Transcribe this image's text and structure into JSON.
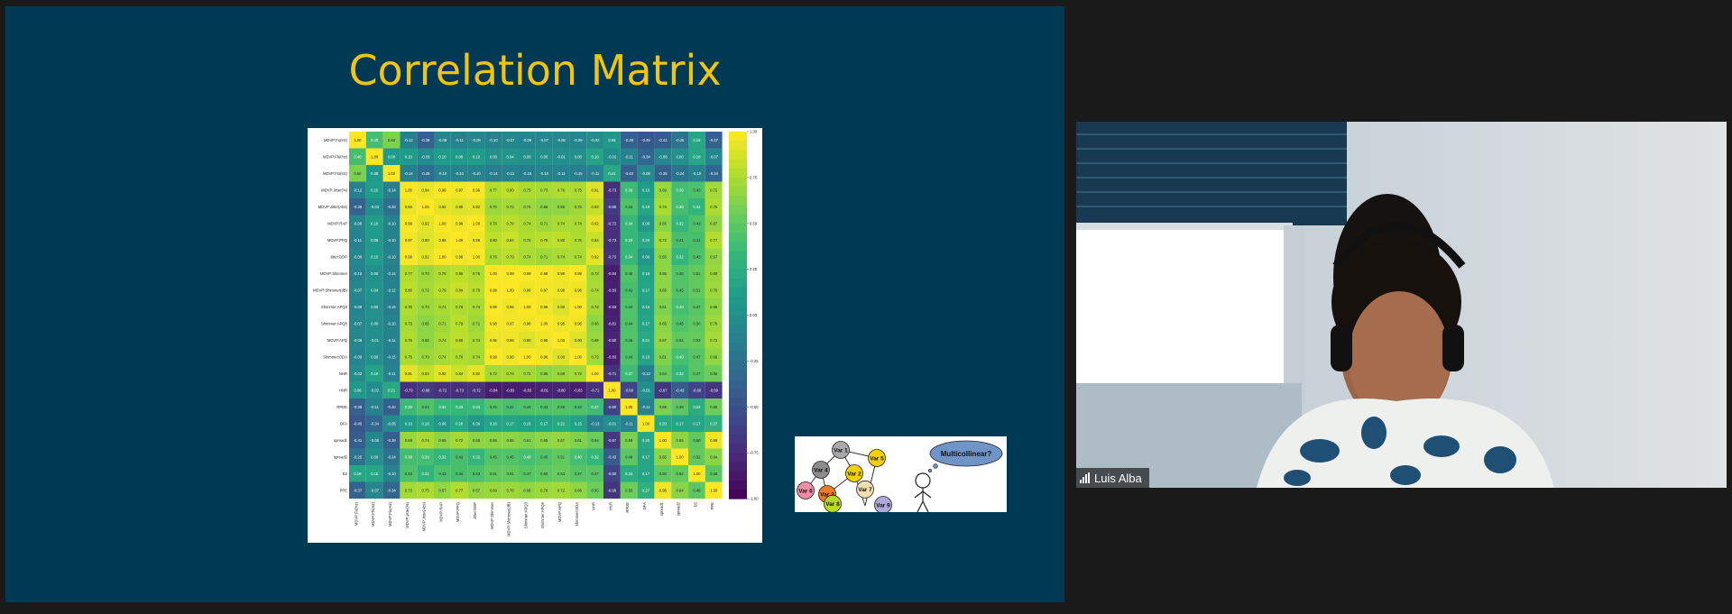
{
  "slide": {
    "title": "Correlation Matrix"
  },
  "heatmap": {
    "labels": [
      "MDVP:Fo(Hz)",
      "MDVP:Fhi(Hz)",
      "MDVP:Flo(Hz)",
      "MDVP:Jitter(%)",
      "MDVP:Jitter(Abs)",
      "MDVP:RAP",
      "MDVP:PPQ",
      "Jitter:DDP",
      "MDVP:Shimmer",
      "MDVP:Shimmer(dB)",
      "Shimmer:APQ3",
      "Shimmer:APQ5",
      "MDVP:APQ",
      "Shimmer:DDA",
      "NHR",
      "HNR",
      "RPDE",
      "DFA",
      "spread1",
      "spread2",
      "D2",
      "PPE"
    ],
    "values": [
      [
        1.0,
        0.4,
        0.6,
        -0.12,
        -0.38,
        -0.08,
        -0.11,
        -0.08,
        -0.1,
        -0.07,
        -0.09,
        -0.07,
        -0.08,
        -0.09,
        -0.02,
        0.06,
        -0.38,
        -0.45,
        -0.41,
        -0.25,
        0.18,
        -0.37
      ],
      [
        0.4,
        1.0,
        0.08,
        0.1,
        -0.03,
        0.1,
        0.09,
        0.1,
        0.0,
        0.04,
        -0.0,
        -0.0,
        -0.01,
        -0.0,
        0.16,
        -0.02,
        -0.11,
        -0.34,
        -0.08,
        -0.0,
        0.18,
        -0.07
      ],
      [
        0.6,
        0.08,
        1.0,
        -0.14,
        -0.28,
        -0.1,
        -0.1,
        -0.1,
        -0.14,
        -0.12,
        -0.15,
        -0.1,
        -0.11,
        -0.15,
        -0.11,
        0.21,
        -0.4,
        -0.05,
        -0.39,
        -0.24,
        -0.1,
        -0.34
      ],
      [
        -0.12,
        0.1,
        -0.14,
        1.0,
        0.94,
        0.99,
        0.97,
        0.99,
        0.77,
        0.8,
        0.75,
        0.73,
        0.76,
        0.75,
        0.91,
        -0.73,
        0.36,
        0.1,
        0.69,
        0.39,
        0.43,
        0.72
      ],
      [
        -0.38,
        -0.03,
        -0.28,
        0.94,
        1.0,
        0.92,
        0.9,
        0.92,
        0.7,
        0.72,
        0.7,
        0.65,
        0.65,
        0.7,
        0.83,
        -0.66,
        0.44,
        0.18,
        0.74,
        0.39,
        0.31,
        0.75
      ],
      [
        -0.08,
        0.1,
        -0.1,
        0.99,
        0.92,
        1.0,
        0.96,
        1.0,
        0.76,
        0.79,
        0.74,
        0.71,
        0.74,
        0.74,
        0.92,
        -0.72,
        0.34,
        0.06,
        0.65,
        0.32,
        0.43,
        0.67
      ],
      [
        -0.11,
        0.09,
        -0.1,
        0.97,
        0.9,
        0.96,
        1.0,
        0.96,
        0.8,
        0.84,
        0.76,
        0.79,
        0.8,
        0.76,
        0.84,
        -0.73,
        0.33,
        0.2,
        0.72,
        0.41,
        0.41,
        0.77
      ],
      [
        -0.08,
        0.1,
        -0.1,
        0.99,
        0.92,
        1.0,
        0.96,
        1.0,
        0.76,
        0.79,
        0.74,
        0.71,
        0.74,
        0.74,
        0.92,
        -0.72,
        0.34,
        0.06,
        0.65,
        0.32,
        0.43,
        0.67
      ],
      [
        -0.1,
        0.0,
        -0.14,
        0.77,
        0.7,
        0.76,
        0.8,
        0.76,
        1.0,
        0.99,
        0.99,
        0.98,
        0.95,
        0.99,
        0.72,
        -0.84,
        0.45,
        0.16,
        0.65,
        0.45,
        0.51,
        0.69
      ],
      [
        -0.07,
        0.04,
        -0.12,
        0.8,
        0.72,
        0.79,
        0.84,
        0.79,
        0.99,
        1.0,
        0.96,
        0.97,
        0.96,
        0.96,
        0.74,
        -0.83,
        0.41,
        0.17,
        0.65,
        0.45,
        0.51,
        0.7
      ],
      [
        -0.09,
        -0.0,
        -0.15,
        0.75,
        0.7,
        0.74,
        0.76,
        0.74,
        0.99,
        0.96,
        1.0,
        0.96,
        0.9,
        1.0,
        0.72,
        -0.83,
        0.44,
        0.15,
        0.61,
        0.4,
        0.47,
        0.66
      ],
      [
        -0.07,
        -0.0,
        -0.1,
        0.73,
        0.65,
        0.71,
        0.79,
        0.71,
        0.98,
        0.97,
        0.96,
        1.0,
        0.95,
        0.96,
        0.66,
        -0.81,
        0.44,
        0.17,
        0.65,
        0.45,
        0.5,
        0.7
      ],
      [
        -0.08,
        -0.01,
        -0.11,
        0.76,
        0.65,
        0.74,
        0.8,
        0.74,
        0.95,
        0.96,
        0.9,
        0.95,
        1.0,
        0.9,
        0.69,
        -0.8,
        0.45,
        0.21,
        0.67,
        0.51,
        0.53,
        0.72
      ],
      [
        -0.09,
        -0.0,
        -0.15,
        0.75,
        0.7,
        0.74,
        0.76,
        0.74,
        0.99,
        0.96,
        1.0,
        0.96,
        0.9,
        1.0,
        0.72,
        -0.83,
        0.44,
        0.15,
        0.61,
        0.4,
        0.47,
        0.66
      ],
      [
        -0.02,
        0.16,
        -0.11,
        0.91,
        0.83,
        0.92,
        0.84,
        0.92,
        0.72,
        0.74,
        0.72,
        0.66,
        0.69,
        0.72,
        1.0,
        -0.71,
        0.37,
        -0.13,
        0.54,
        0.32,
        0.47,
        0.55
      ],
      [
        0.06,
        -0.02,
        0.21,
        -0.73,
        -0.66,
        -0.72,
        -0.73,
        -0.72,
        -0.84,
        -0.83,
        -0.83,
        -0.81,
        -0.8,
        -0.83,
        -0.71,
        1.0,
        -0.6,
        -0.01,
        -0.67,
        -0.43,
        -0.6,
        -0.69
      ],
      [
        -0.38,
        -0.11,
        -0.4,
        0.36,
        0.44,
        0.34,
        0.33,
        0.34,
        0.45,
        0.41,
        0.44,
        0.44,
        0.45,
        0.44,
        0.37,
        -0.6,
        1.0,
        -0.11,
        0.59,
        0.48,
        0.24,
        0.55
      ],
      [
        -0.45,
        -0.34,
        -0.05,
        0.1,
        0.18,
        0.06,
        0.2,
        0.06,
        0.16,
        0.17,
        0.15,
        0.17,
        0.21,
        0.15,
        -0.13,
        -0.01,
        -0.11,
        1.0,
        0.2,
        0.17,
        0.17,
        0.27
      ],
      [
        -0.41,
        -0.08,
        -0.39,
        0.69,
        0.74,
        0.65,
        0.72,
        0.65,
        0.65,
        0.65,
        0.61,
        0.65,
        0.67,
        0.61,
        0.54,
        -0.67,
        0.59,
        0.2,
        1.0,
        0.65,
        0.5,
        0.96
      ],
      [
        -0.25,
        -0.0,
        -0.24,
        0.39,
        0.39,
        0.32,
        0.41,
        0.32,
        0.45,
        0.45,
        0.4,
        0.45,
        0.51,
        0.4,
        0.32,
        -0.43,
        0.48,
        0.17,
        0.65,
        1.0,
        0.52,
        0.64
      ],
      [
        0.18,
        0.18,
        -0.1,
        0.43,
        0.31,
        0.43,
        0.41,
        0.43,
        0.51,
        0.51,
        0.47,
        0.5,
        0.53,
        0.47,
        0.47,
        -0.6,
        0.24,
        0.17,
        0.5,
        0.52,
        1.0,
        0.48
      ],
      [
        -0.37,
        -0.07,
        -0.34,
        0.72,
        0.75,
        0.67,
        0.77,
        0.67,
        0.69,
        0.7,
        0.66,
        0.7,
        0.72,
        0.66,
        0.55,
        -0.69,
        0.55,
        0.27,
        0.96,
        0.64,
        0.48,
        1.0
      ]
    ],
    "colorbar_ticks": [
      "1.00",
      "0.75",
      "0.50",
      "0.25",
      "0.00",
      "-0.25",
      "-0.50",
      "-0.75",
      "-1.00"
    ]
  },
  "diagram": {
    "nodes": [
      {
        "label": "Var 1",
        "color": "#a9a9a9"
      },
      {
        "label": "Var 5",
        "color": "#f5d000"
      },
      {
        "label": "Var 4",
        "color": "#8c8c8c"
      },
      {
        "label": "Var 2",
        "color": "#f5d000"
      },
      {
        "label": "Var 6",
        "color": "#f08ca8"
      },
      {
        "label": "Var 3",
        "color": "#f07a28"
      },
      {
        "label": "Var 7",
        "color": "#f0e0b0"
      },
      {
        "label": "Var 8",
        "color": "#b8d830"
      },
      {
        "label": "Var 9",
        "color": "#b0a8d8"
      }
    ],
    "thought": "Multicollinear?"
  },
  "participant": {
    "name": "Luis Alba"
  }
}
